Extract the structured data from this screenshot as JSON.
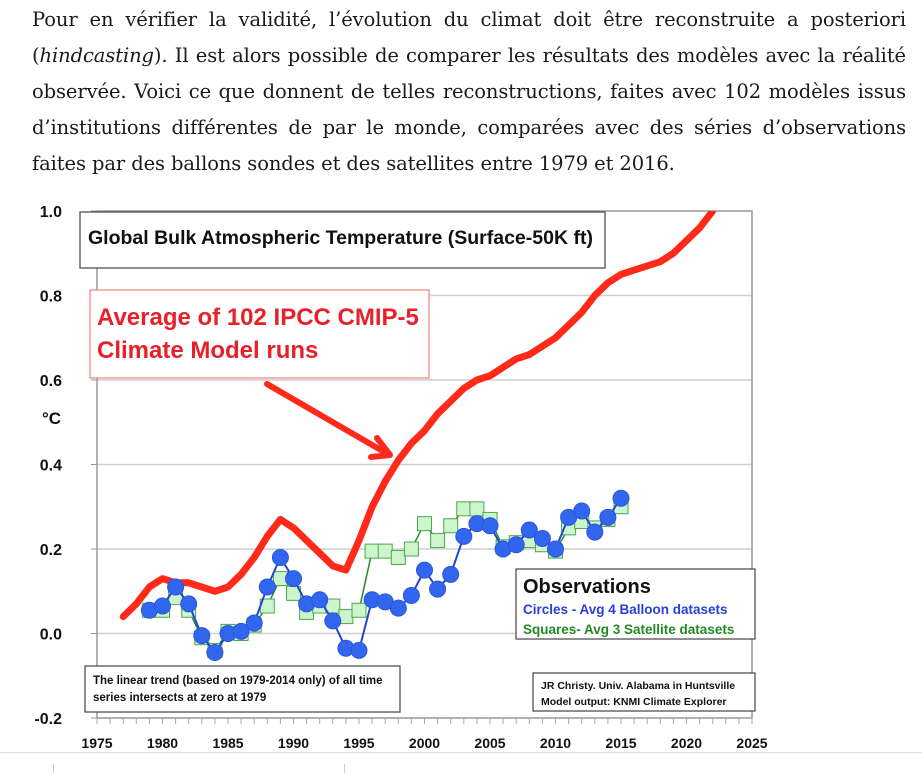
{
  "paragraph": {
    "line1": "Pour en vérifier la validité, l’évolution du climat doit être reconstruite a posteriori",
    "line2_open": "(",
    "line2_italic": "hindcasting",
    "line2_rest": "). Il est alors possible de comparer les résultats des modèles avec la réalité",
    "line3": "observée. Voici ce que donnent de telles reconstructions, faites avec 102 modèles issus",
    "line4": "d’institutions différentes de par le monde, comparées avec des séries d’observations",
    "line5": "faites par des ballons sondes et des satellites entre 1979 et 2016."
  },
  "chart_data": {
    "type": "line",
    "title": "Global Bulk Atmospheric Temperature (Surface-50K ft)",
    "xlabel": "",
    "ylabel": "°C",
    "xlim": [
      1975,
      2025
    ],
    "ylim": [
      -0.2,
      1.0
    ],
    "x_ticks": [
      "1975",
      "1980",
      "1985",
      "1990",
      "1995",
      "2000",
      "2005",
      "2010",
      "2015",
      "2020",
      "2025"
    ],
    "y_ticks": [
      "1.0",
      "0.8",
      "0.6",
      "0.4",
      "0.2",
      "0.0",
      "-0.2"
    ],
    "grid": true,
    "annotations": {
      "model_label_line1": "Average of 102 IPCC CMIP-5",
      "model_label_line2": "Climate Model runs",
      "legend_title": "Observations",
      "legend_circles": "Circles - Avg 4 Balloon datasets",
      "legend_squares": "Squares- Avg 3 Satellite datasets",
      "trend_note_line1": "The linear trend (based on 1979-2014 only) of all time",
      "trend_note_line2": "series intersects at zero at 1979",
      "credit_line1": "JR Christy. Univ. Alabama in Huntsville",
      "credit_line2": "Model output: KNMI Climate Explorer"
    },
    "legend_position": "bottom-right",
    "series": [
      {
        "name": "Average of 102 IPCC CMIP-5 Climate Model runs",
        "color": "#ff2a1a",
        "marker": "none",
        "x": [
          1977,
          1978,
          1979,
          1980,
          1981,
          1982,
          1983,
          1984,
          1985,
          1986,
          1987,
          1988,
          1989,
          1990,
          1991,
          1992,
          1993,
          1994,
          1995,
          1996,
          1997,
          1998,
          1999,
          2000,
          2001,
          2002,
          2003,
          2004,
          2005,
          2006,
          2007,
          2008,
          2009,
          2010,
          2011,
          2012,
          2013,
          2014,
          2015,
          2016,
          2017,
          2018,
          2019,
          2020,
          2021,
          2022
        ],
        "y": [
          0.04,
          0.07,
          0.11,
          0.13,
          0.12,
          0.12,
          0.11,
          0.1,
          0.11,
          0.14,
          0.18,
          0.23,
          0.27,
          0.25,
          0.22,
          0.19,
          0.16,
          0.15,
          0.22,
          0.3,
          0.36,
          0.41,
          0.45,
          0.48,
          0.52,
          0.55,
          0.58,
          0.6,
          0.61,
          0.63,
          0.65,
          0.66,
          0.68,
          0.7,
          0.73,
          0.76,
          0.8,
          0.83,
          0.85,
          0.86,
          0.87,
          0.88,
          0.9,
          0.93,
          0.96,
          1.0
        ]
      },
      {
        "name": "Circles - Avg 4 Balloon datasets",
        "color": "#3366ee",
        "marker": "circle",
        "x": [
          1979,
          1980,
          1981,
          1982,
          1983,
          1984,
          1985,
          1986,
          1987,
          1988,
          1989,
          1990,
          1991,
          1992,
          1993,
          1994,
          1995,
          1996,
          1997,
          1998,
          1999,
          2000,
          2001,
          2002,
          2003,
          2004,
          2005,
          2006,
          2007,
          2008,
          2009,
          2010,
          2011,
          2012,
          2013,
          2014,
          2015
        ],
        "y": [
          0.055,
          0.065,
          0.11,
          0.07,
          -0.005,
          -0.045,
          0.0,
          0.005,
          0.025,
          0.11,
          0.18,
          0.13,
          0.07,
          0.08,
          0.03,
          -0.035,
          -0.04,
          0.08,
          0.075,
          0.06,
          0.09,
          0.15,
          0.105,
          0.14,
          0.23,
          0.26,
          0.255,
          0.2,
          0.21,
          0.245,
          0.225,
          0.2,
          0.275,
          0.29,
          0.24,
          0.275,
          0.32
        ]
      },
      {
        "name": "Squares- Avg 3 Satellite datasets",
        "color": "#2a8a2a",
        "fill": "#cdf5cd",
        "marker": "square",
        "x": [
          1979,
          1980,
          1981,
          1982,
          1983,
          1984,
          1985,
          1986,
          1987,
          1988,
          1989,
          1990,
          1991,
          1992,
          1993,
          1994,
          1995,
          1996,
          1997,
          1998,
          1999,
          2000,
          2001,
          2002,
          2003,
          2004,
          2005,
          2006,
          2007,
          2008,
          2009,
          2010,
          2011,
          2012,
          2013,
          2014,
          2015
        ],
        "y": [
          0.055,
          0.055,
          0.085,
          0.055,
          -0.01,
          -0.04,
          0.005,
          0.0,
          0.02,
          0.065,
          0.13,
          0.095,
          0.05,
          0.065,
          0.065,
          0.04,
          0.055,
          0.195,
          0.195,
          0.18,
          0.2,
          0.26,
          0.22,
          0.255,
          0.295,
          0.295,
          0.27,
          0.205,
          0.215,
          0.22,
          0.21,
          0.195,
          0.25,
          0.265,
          0.25,
          0.27,
          0.3
        ]
      }
    ]
  }
}
